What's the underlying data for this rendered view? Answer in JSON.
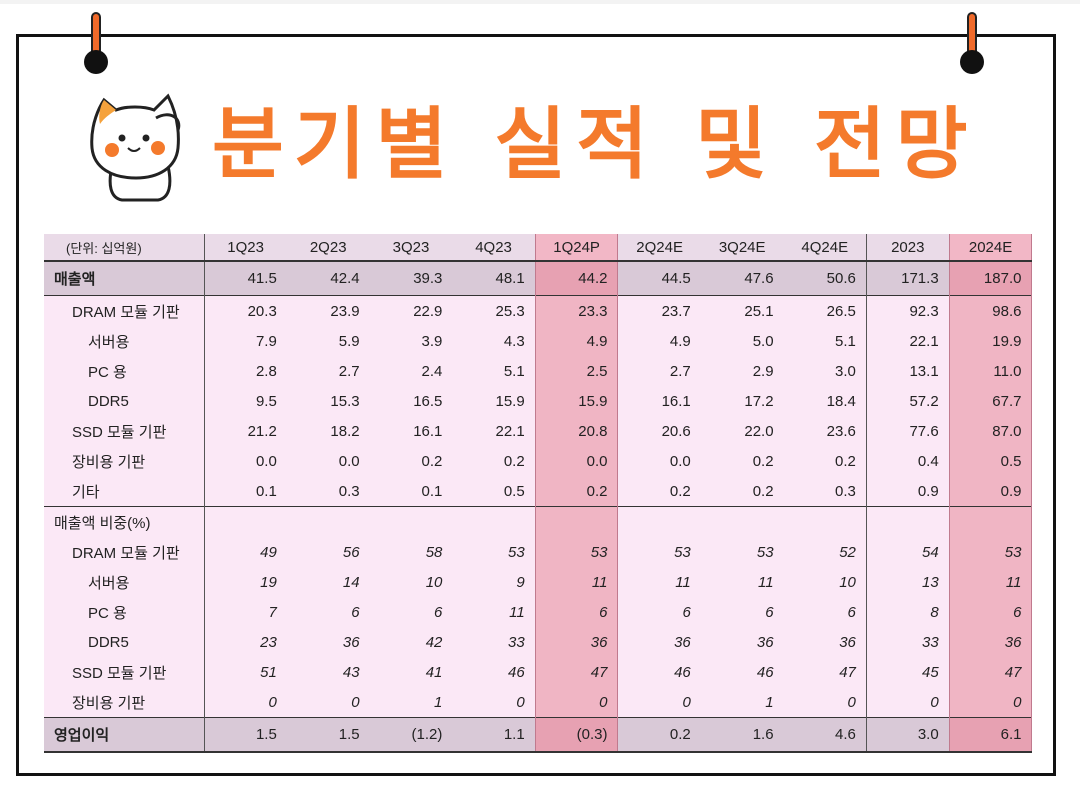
{
  "title": "분기별 실적 및 전망",
  "table": {
    "unit_label": "(단위: 십억원)",
    "columns": [
      "1Q23",
      "2Q23",
      "3Q23",
      "4Q23",
      "1Q24P",
      "2Q24E",
      "3Q24E",
      "4Q24E",
      "2023",
      "2024E"
    ],
    "highlight_columns": [
      "1Q24P",
      "2024E"
    ],
    "revenue": {
      "label": "매출액",
      "values": [
        "41.5",
        "42.4",
        "39.3",
        "48.1",
        "44.2",
        "44.5",
        "47.6",
        "50.6",
        "171.3",
        "187.0"
      ]
    },
    "revenue_rows": [
      {
        "label": "DRAM 모듈 기판",
        "level": 1,
        "values": [
          "20.3",
          "23.9",
          "22.9",
          "25.3",
          "23.3",
          "23.7",
          "25.1",
          "26.5",
          "92.3",
          "98.6"
        ]
      },
      {
        "label": "서버용",
        "level": 2,
        "values": [
          "7.9",
          "5.9",
          "3.9",
          "4.3",
          "4.9",
          "4.9",
          "5.0",
          "5.1",
          "22.1",
          "19.9"
        ]
      },
      {
        "label": "PC 용",
        "level": 2,
        "values": [
          "2.8",
          "2.7",
          "2.4",
          "5.1",
          "2.5",
          "2.7",
          "2.9",
          "3.0",
          "13.1",
          "11.0"
        ]
      },
      {
        "label": "DDR5",
        "level": 2,
        "values": [
          "9.5",
          "15.3",
          "16.5",
          "15.9",
          "15.9",
          "16.1",
          "17.2",
          "18.4",
          "57.2",
          "67.7"
        ]
      },
      {
        "label": "SSD 모듈 기판",
        "level": 1,
        "values": [
          "21.2",
          "18.2",
          "16.1",
          "22.1",
          "20.8",
          "20.6",
          "22.0",
          "23.6",
          "77.6",
          "87.0"
        ]
      },
      {
        "label": "장비용 기판",
        "level": 1,
        "values": [
          "0.0",
          "0.0",
          "0.2",
          "0.2",
          "0.0",
          "0.0",
          "0.2",
          "0.2",
          "0.4",
          "0.5"
        ]
      },
      {
        "label": "기타",
        "level": 1,
        "values": [
          "0.1",
          "0.3",
          "0.1",
          "0.5",
          "0.2",
          "0.2",
          "0.2",
          "0.3",
          "0.9",
          "0.9"
        ]
      }
    ],
    "share_header": "매출액 비중(%)",
    "share_rows": [
      {
        "label": "DRAM 모듈 기판",
        "level": 1,
        "values": [
          "49",
          "56",
          "58",
          "53",
          "53",
          "53",
          "53",
          "52",
          "54",
          "53"
        ]
      },
      {
        "label": "서버용",
        "level": 2,
        "values": [
          "19",
          "14",
          "10",
          "9",
          "11",
          "11",
          "11",
          "10",
          "13",
          "11"
        ]
      },
      {
        "label": "PC 용",
        "level": 2,
        "values": [
          "7",
          "6",
          "6",
          "11",
          "6",
          "6",
          "6",
          "6",
          "8",
          "6"
        ]
      },
      {
        "label": "DDR5",
        "level": 2,
        "values": [
          "23",
          "36",
          "42",
          "33",
          "36",
          "36",
          "36",
          "36",
          "33",
          "36"
        ]
      },
      {
        "label": "SSD 모듈 기판",
        "level": 1,
        "values": [
          "51",
          "43",
          "41",
          "46",
          "47",
          "46",
          "46",
          "47",
          "45",
          "47"
        ]
      },
      {
        "label": "장비용 기판",
        "level": 1,
        "values": [
          "0",
          "0",
          "1",
          "0",
          "0",
          "0",
          "1",
          "0",
          "0",
          "0"
        ]
      }
    ],
    "operating_profit": {
      "label": "영업이익",
      "values": [
        "1.5",
        "1.5",
        "(1.2)",
        "1.1",
        "(0.3)",
        "0.2",
        "1.6",
        "4.6",
        "3.0",
        "6.1"
      ]
    }
  },
  "colors": {
    "title": "#f47a2c",
    "header_bg": "#eadbe8",
    "body_bg": "#fbe8f6",
    "section_bg": "#d9c9d7",
    "highlight": "#f0b5c4"
  }
}
